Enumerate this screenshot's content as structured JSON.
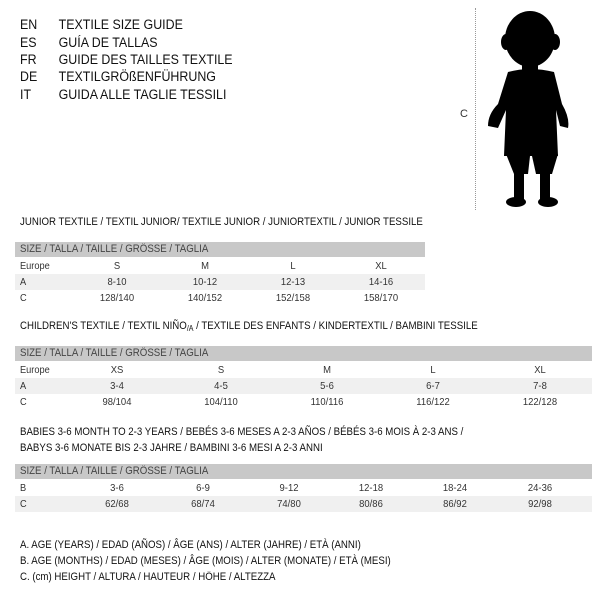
{
  "languages": [
    {
      "code": "EN",
      "text": "TEXTILE SIZE GUIDE"
    },
    {
      "code": "ES",
      "text": "GUÍA DE TALLAS"
    },
    {
      "code": "FR",
      "text": "GUIDE DES TAILLES TEXTILE"
    },
    {
      "code": "DE",
      "text": "TEXTILGRÖßENFÜHRUNG"
    },
    {
      "code": "IT",
      "text": "GUIDA ALLE TAGLIE TESSILI"
    }
  ],
  "figure": {
    "measure_label": "C"
  },
  "junior": {
    "title": "JUNIOR TEXTILE / TEXTIL JUNIOR/ TEXTILE JUNIOR / JUNIORTEXTIL / JUNIOR TESSILE",
    "header": "SIZE / TALLA / TAILLE / GRÖSSE / TAGLIA",
    "rows": [
      {
        "label": "Europe",
        "values": [
          "S",
          "M",
          "L",
          "XL"
        ]
      },
      {
        "label": "A",
        "values": [
          "8-10",
          "10-12",
          "12-13",
          "14-16"
        ]
      },
      {
        "label": "C",
        "values": [
          "128/140",
          "140/152",
          "152/158",
          "158/170"
        ]
      }
    ]
  },
  "children": {
    "title_a": "CHILDREN'S TEXTILE / TEXTIL NIÑO",
    "title_sub": "/A",
    "title_b": " / TEXTILE DES ENFANTS / KINDERTEXTIL / BAMBINI TESSILE",
    "header": "SIZE / TALLA / TAILLE / GRÖSSE / TAGLIA",
    "rows": [
      {
        "label": "Europe",
        "values": [
          "XS",
          "S",
          "M",
          "L",
          "XL"
        ]
      },
      {
        "label": "A",
        "values": [
          "3-4",
          "4-5",
          "5-6",
          "6-7",
          "7-8"
        ]
      },
      {
        "label": "C",
        "values": [
          "98/104",
          "104/110",
          "110/116",
          "116/122",
          "122/128"
        ]
      }
    ]
  },
  "babies": {
    "title_1": "BABIES 3-6 MONTH TO 2-3 YEARS / BEBÉS 3-6 MESES A 2-3 AÑOS / BÉBÉS 3-6 MOIS À 2-3 ANS /",
    "title_2": "BABYS 3-6 MONATE BIS 2-3 JAHRE / BAMBINI 3-6 MESI A 2-3 ANNI",
    "header": "SIZE / TALLA / TAILLE / GRÖSSE / TAGLIA",
    "rows": [
      {
        "label": "B",
        "values": [
          "3-6",
          "6-9",
          "9-12",
          "12-18",
          "18-24",
          "24-36"
        ]
      },
      {
        "label": "C",
        "values": [
          "62/68",
          "68/74",
          "74/80",
          "80/86",
          "86/92",
          "92/98"
        ]
      }
    ]
  },
  "legend": [
    "A. AGE (YEARS) / EDAD (AÑOS) / ÂGE (ANS) / ALTER (JAHRE) / ETÀ (ANNI)",
    "B. AGE (MONTHS) / EDAD (MESES) / ÂGE (MOIS) / ALTER (MONATE) / ETÀ (MESI)",
    "C. (cm) HEIGHT / ALTURA / HAUTEUR / HÖHE / ALTEZZA"
  ]
}
